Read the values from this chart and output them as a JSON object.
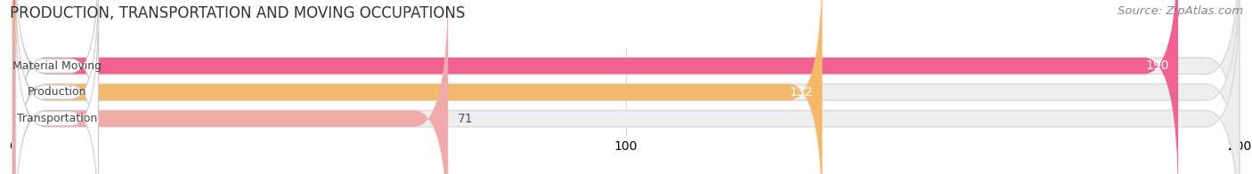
{
  "title": "PRODUCTION, TRANSPORTATION AND MOVING OCCUPATIONS",
  "source": "Source: ZipAtlas.com",
  "categories": [
    "Material Moving",
    "Production",
    "Transportation"
  ],
  "values": [
    190,
    132,
    71
  ],
  "bar_colors": [
    "#f06292",
    "#f5b96e",
    "#f0aaaa"
  ],
  "bar_bg_color": "#eeeeee",
  "xlim": [
    0,
    200
  ],
  "xticks": [
    0,
    100,
    200
  ],
  "bar_height": 0.62,
  "title_fontsize": 12,
  "source_fontsize": 9.5,
  "tick_fontsize": 10,
  "bar_label_fontsize": 10,
  "category_fontsize": 9,
  "background_color": "#ffffff"
}
